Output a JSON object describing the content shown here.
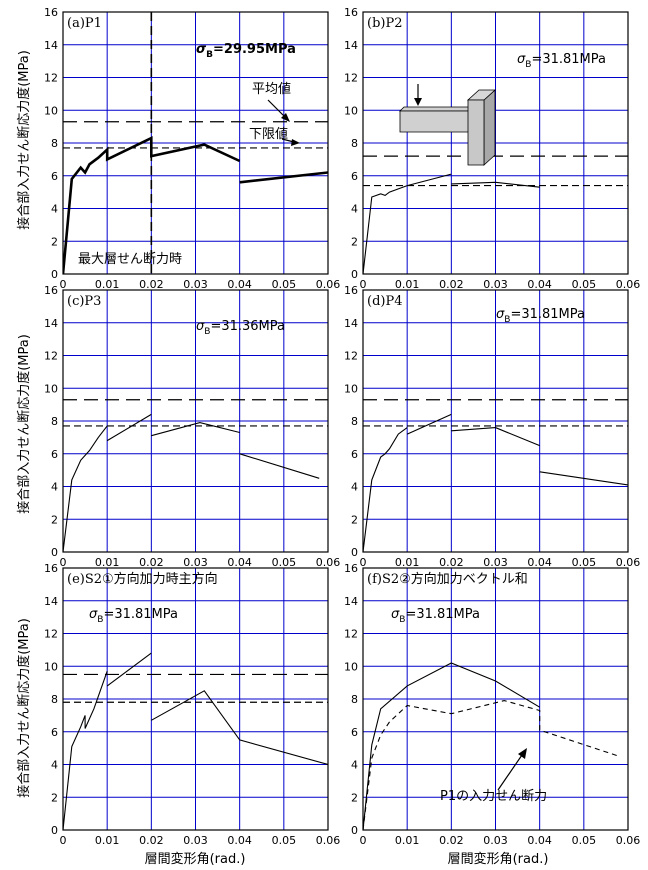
{
  "figure": {
    "ylabel": "接合部入力せん断応力度(MPa)",
    "xlabel": "層間変形角(rad.)"
  },
  "chart_data": [
    {
      "type": "line",
      "panel": "a",
      "panel_label": "(a)P1",
      "sigma_symbol": "σ",
      "sigma_sub": "B",
      "sigma_value": "=29.95MPa",
      "sigma_bold": true,
      "xlim": [
        0,
        0.06
      ],
      "ylim": [
        0,
        16
      ],
      "xticks": [
        "0",
        "0.01",
        "0.02",
        "0.03",
        "0.04",
        "0.05",
        "0.06"
      ],
      "yticks": [
        "0",
        "2",
        "4",
        "6",
        "8",
        "10",
        "12",
        "14",
        "16"
      ],
      "grid": true,
      "avg_line": 9.3,
      "lower_line": 7.7,
      "peak_x_line": 0.02,
      "line_width": 2.6,
      "series": [
        {
          "style": "solid",
          "segments": [
            [
              [
                0,
                0
              ],
              [
                0.002,
                5.8
              ],
              [
                0.004,
                6.5
              ],
              [
                0.005,
                6.2
              ],
              [
                0.006,
                6.7
              ],
              [
                0.008,
                7.1
              ],
              [
                0.01,
                7.6
              ],
              [
                0.01,
                7.0
              ],
              [
                0.02,
                8.3
              ],
              [
                0.02,
                7.2
              ],
              [
                0.032,
                7.9
              ],
              [
                0.04,
                6.9
              ]
            ],
            [
              [
                0.04,
                5.6
              ],
              [
                0.06,
                6.2
              ]
            ]
          ]
        }
      ],
      "annotations": {
        "avg": "平均値",
        "lower": "下限値",
        "peak": "最大層せん断力時"
      }
    },
    {
      "type": "line",
      "panel": "b",
      "panel_label": "(b)P2",
      "sigma_symbol": "σ",
      "sigma_sub": "B",
      "sigma_value": "=31.81MPa",
      "sigma_bold": false,
      "xlim": [
        0,
        0.06
      ],
      "ylim": [
        0,
        16
      ],
      "xticks": [
        "0",
        "0.01",
        "0.02",
        "0.03",
        "0.04",
        "0.05",
        "0.06"
      ],
      "yticks": [
        "0",
        "2",
        "4",
        "6",
        "8",
        "10",
        "12",
        "14",
        "16"
      ],
      "grid": true,
      "avg_line": 7.2,
      "lower_line": 5.4,
      "line_width": 1.1,
      "series": [
        {
          "style": "solid",
          "segments": [
            [
              [
                0,
                0
              ],
              [
                0.002,
                4.7
              ],
              [
                0.004,
                4.9
              ],
              [
                0.005,
                4.8
              ],
              [
                0.006,
                5.0
              ],
              [
                0.01,
                5.4
              ],
              [
                0.02,
                6.1
              ]
            ],
            [
              [
                0.02,
                5.5
              ],
              [
                0.03,
                5.6
              ],
              [
                0.04,
                5.3
              ]
            ]
          ]
        }
      ],
      "has_schematic": true
    },
    {
      "type": "line",
      "panel": "c",
      "panel_label": "(c)P3",
      "sigma_symbol": "σ",
      "sigma_sub": "B",
      "sigma_value": "=31.36MPa",
      "sigma_bold": false,
      "xlim": [
        0,
        0.06
      ],
      "ylim": [
        0,
        16
      ],
      "xticks": [
        "0",
        "0.01",
        "0.02",
        "0.03",
        "0.04",
        "0.05",
        "0.06"
      ],
      "yticks": [
        "0",
        "2",
        "4",
        "6",
        "8",
        "10",
        "12",
        "14",
        "16"
      ],
      "grid": true,
      "avg_line": 9.3,
      "lower_line": 7.7,
      "line_width": 1.1,
      "series": [
        {
          "style": "solid",
          "segments": [
            [
              [
                0,
                0
              ],
              [
                0.002,
                4.4
              ],
              [
                0.004,
                5.6
              ],
              [
                0.005,
                5.9
              ],
              [
                0.006,
                6.2
              ],
              [
                0.008,
                7.0
              ],
              [
                0.01,
                7.7
              ]
            ],
            [
              [
                0.01,
                6.8
              ],
              [
                0.02,
                8.4
              ]
            ],
            [
              [
                0.02,
                7.1
              ],
              [
                0.031,
                7.9
              ],
              [
                0.04,
                7.3
              ]
            ],
            [
              [
                0.04,
                6.0
              ],
              [
                0.058,
                4.5
              ]
            ]
          ]
        }
      ]
    },
    {
      "type": "line",
      "panel": "d",
      "panel_label": "(d)P4",
      "sigma_symbol": "σ",
      "sigma_sub": "B",
      "sigma_value": "=31.81MPa",
      "sigma_bold": false,
      "xlim": [
        0,
        0.06
      ],
      "ylim": [
        0,
        16
      ],
      "xticks": [
        "0",
        "0.01",
        "0.02",
        "0.03",
        "0.04",
        "0.05",
        "0.06"
      ],
      "yticks": [
        "0",
        "2",
        "4",
        "6",
        "8",
        "10",
        "12",
        "14",
        "16"
      ],
      "grid": true,
      "avg_line": 9.3,
      "lower_line": 7.7,
      "line_width": 1.1,
      "series": [
        {
          "style": "solid",
          "segments": [
            [
              [
                0,
                0
              ],
              [
                0.002,
                4.4
              ],
              [
                0.004,
                5.8
              ],
              [
                0.005,
                6.0
              ],
              [
                0.006,
                6.3
              ],
              [
                0.008,
                7.2
              ],
              [
                0.01,
                7.6
              ]
            ],
            [
              [
                0.01,
                7.2
              ],
              [
                0.02,
                8.4
              ]
            ],
            [
              [
                0.02,
                7.4
              ],
              [
                0.03,
                7.6
              ],
              [
                0.04,
                6.5
              ]
            ],
            [
              [
                0.04,
                4.9
              ],
              [
                0.06,
                4.1
              ]
            ]
          ]
        }
      ]
    },
    {
      "type": "line",
      "panel": "e",
      "panel_label": "(e)S2①方向加力時主方向",
      "sigma_symbol": "σ",
      "sigma_sub": "B",
      "sigma_value": "=31.81MPa",
      "sigma_bold": false,
      "xlim": [
        0,
        0.06
      ],
      "ylim": [
        0,
        16
      ],
      "xticks": [
        "0",
        "0.01",
        "0.02",
        "0.03",
        "0.04",
        "0.05",
        "0.06"
      ],
      "yticks": [
        "0",
        "2",
        "4",
        "6",
        "8",
        "10",
        "12",
        "14",
        "16"
      ],
      "grid": true,
      "avg_line": 9.5,
      "lower_line": 7.8,
      "line_width": 1.1,
      "series": [
        {
          "style": "solid",
          "segments": [
            [
              [
                0,
                0
              ],
              [
                0.002,
                5.1
              ],
              [
                0.004,
                6.3
              ],
              [
                0.005,
                7.0
              ],
              [
                0.005,
                6.2
              ],
              [
                0.007,
                7.4
              ],
              [
                0.01,
                9.7
              ]
            ],
            [
              [
                0.01,
                8.8
              ],
              [
                0.02,
                10.8
              ]
            ],
            [
              [
                0.02,
                6.7
              ],
              [
                0.032,
                8.5
              ],
              [
                0.04,
                5.5
              ],
              [
                0.06,
                4.0
              ]
            ]
          ]
        }
      ]
    },
    {
      "type": "line",
      "panel": "f",
      "panel_label": "(f)S2②方向加力ベクトル和",
      "sigma_symbol": "σ",
      "sigma_sub": "B",
      "sigma_value": "=31.81MPa",
      "sigma_bold": false,
      "xlim": [
        0,
        0.06
      ],
      "ylim": [
        0,
        16
      ],
      "xticks": [
        "0",
        "0.01",
        "0.02",
        "0.03",
        "0.04",
        "0.05",
        "0.06"
      ],
      "yticks": [
        "0",
        "2",
        "4",
        "6",
        "8",
        "10",
        "12",
        "14",
        "16"
      ],
      "grid": true,
      "line_width": 1.1,
      "series": [
        {
          "style": "solid",
          "segments": [
            [
              [
                0,
                0
              ],
              [
                0.002,
                5.2
              ],
              [
                0.004,
                7.4
              ],
              [
                0.01,
                8.8
              ],
              [
                0.02,
                10.2
              ],
              [
                0.03,
                9.1
              ],
              [
                0.04,
                7.5
              ]
            ]
          ]
        },
        {
          "style": "dashed",
          "segments": [
            [
              [
                0,
                0
              ],
              [
                0.002,
                4.4
              ],
              [
                0.004,
                5.8
              ],
              [
                0.006,
                6.6
              ],
              [
                0.01,
                7.6
              ],
              [
                0.02,
                7.1
              ],
              [
                0.032,
                7.9
              ],
              [
                0.04,
                7.3
              ],
              [
                0.04,
                6.1
              ],
              [
                0.058,
                4.5
              ]
            ]
          ]
        }
      ],
      "annotations": {
        "p1_input": "P1の入力せん断力"
      }
    }
  ]
}
